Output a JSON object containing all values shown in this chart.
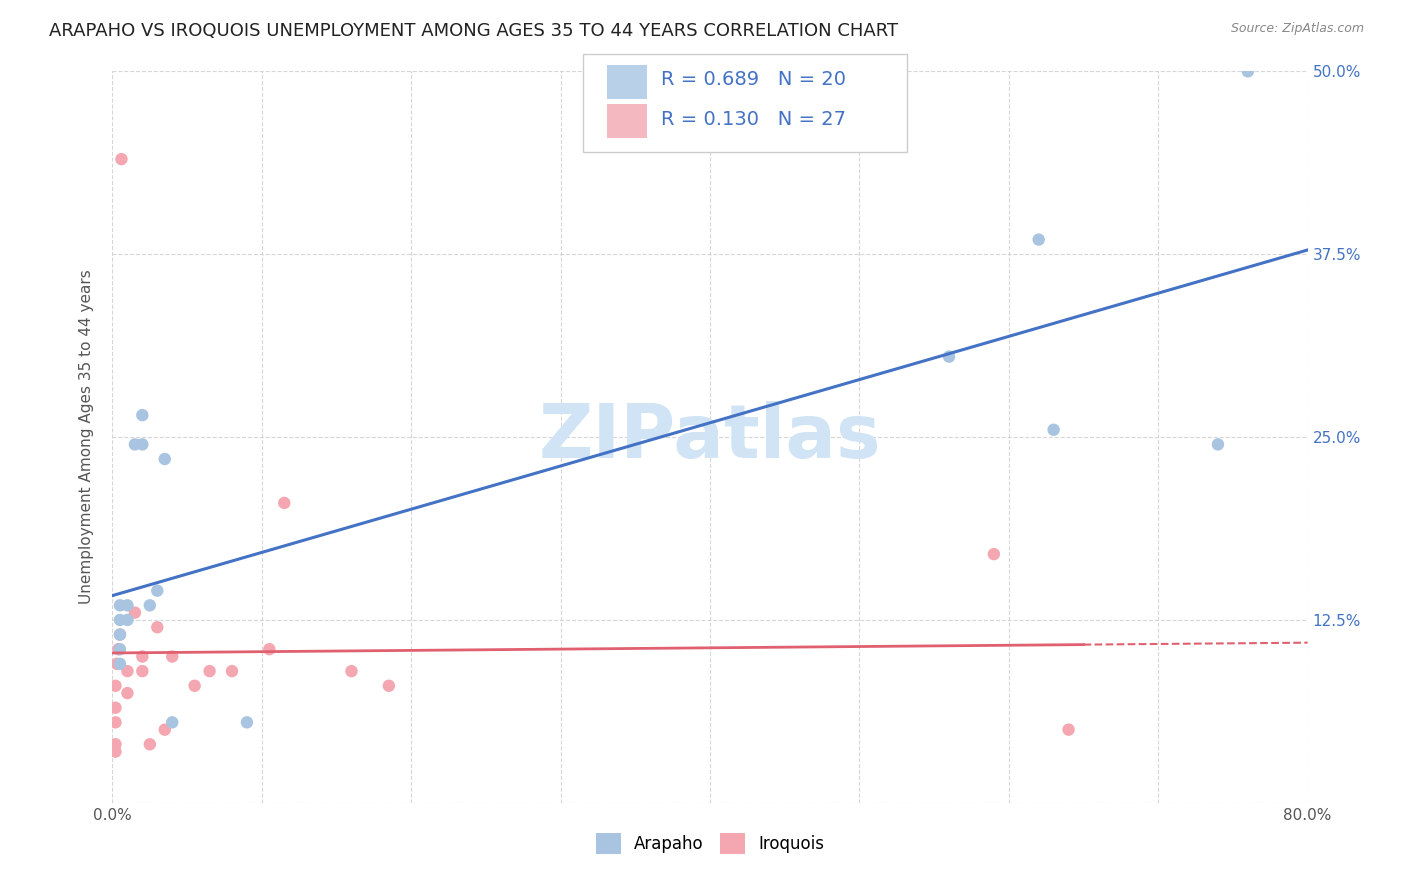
{
  "title": "ARAPAHO VS IROQUOIS UNEMPLOYMENT AMONG AGES 35 TO 44 YEARS CORRELATION CHART",
  "source": "Source: ZipAtlas.com",
  "ylabel": "Unemployment Among Ages 35 to 44 years",
  "xlim": [
    0.0,
    0.8
  ],
  "ylim": [
    0.0,
    0.5
  ],
  "xticks": [
    0.0,
    0.1,
    0.2,
    0.3,
    0.4,
    0.5,
    0.6,
    0.7,
    0.8
  ],
  "xticklabels": [
    "0.0%",
    "",
    "",
    "",
    "",
    "",
    "",
    "",
    "80.0%"
  ],
  "yticks": [
    0.0,
    0.125,
    0.25,
    0.375,
    0.5
  ],
  "ylabels_left": [
    "",
    "",
    "",
    "",
    ""
  ],
  "ylabels_right": [
    "",
    "12.5%",
    "25.0%",
    "37.5%",
    "50.0%"
  ],
  "arapaho_color": "#a8c4e0",
  "iroquois_color": "#f4a7b0",
  "arapaho_line_color": "#4472c4",
  "iroquois_line_color": "#e06070",
  "legend_fill_arapaho": "#b8d0e8",
  "legend_fill_iroquois": "#f4b8c0",
  "R_arapaho": 0.689,
  "N_arapaho": 20,
  "R_iroquois": 0.13,
  "N_iroquois": 27,
  "arapaho_x": [
    0.005,
    0.005,
    0.005,
    0.005,
    0.005,
    0.01,
    0.01,
    0.015,
    0.02,
    0.02,
    0.025,
    0.03,
    0.035,
    0.04,
    0.09,
    0.56,
    0.62,
    0.63,
    0.74,
    0.76
  ],
  "arapaho_y": [
    0.095,
    0.105,
    0.115,
    0.125,
    0.135,
    0.125,
    0.135,
    0.245,
    0.245,
    0.265,
    0.135,
    0.145,
    0.235,
    0.055,
    0.055,
    0.305,
    0.385,
    0.255,
    0.245,
    0.5
  ],
  "iroquois_x": [
    0.002,
    0.002,
    0.002,
    0.002,
    0.002,
    0.003,
    0.004,
    0.005,
    0.006,
    0.01,
    0.01,
    0.015,
    0.02,
    0.02,
    0.025,
    0.03,
    0.035,
    0.04,
    0.055,
    0.065,
    0.08,
    0.105,
    0.115,
    0.16,
    0.185,
    0.59,
    0.64
  ],
  "iroquois_y": [
    0.035,
    0.04,
    0.055,
    0.065,
    0.08,
    0.095,
    0.105,
    0.115,
    0.44,
    0.075,
    0.09,
    0.13,
    0.09,
    0.1,
    0.04,
    0.12,
    0.05,
    0.1,
    0.08,
    0.09,
    0.09,
    0.105,
    0.205,
    0.09,
    0.08,
    0.17,
    0.05
  ],
  "watermark_text": "ZIPatlas",
  "watermark_color": "#d0e4f5",
  "background_color": "#ffffff",
  "grid_color": "#cccccc",
  "title_fontsize": 13,
  "axis_label_fontsize": 11,
  "tick_fontsize": 11,
  "legend_fontsize": 14,
  "dot_size": 80,
  "iroquois_line_solid_end": 0.65,
  "iroquois_line_dashed_start": 0.65
}
